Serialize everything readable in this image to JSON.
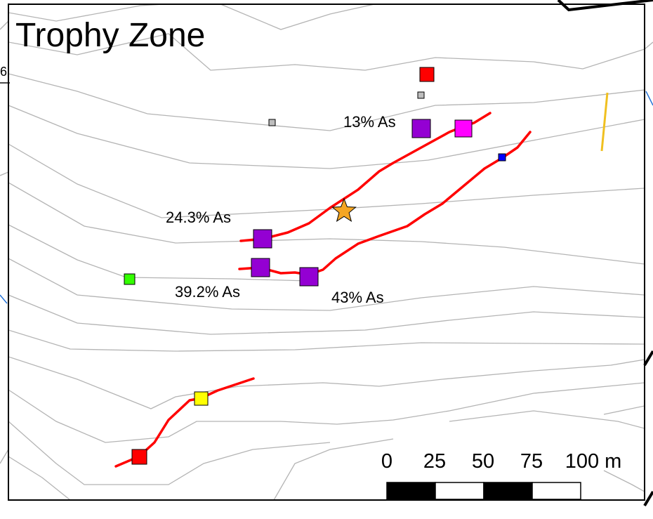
{
  "map": {
    "title": "Trophy Zone",
    "outside_label_fragment": "6",
    "colors": {
      "contour": "#b4b4b4",
      "vein": "#ff0000",
      "frame": "#000000",
      "stream": "#1f6fd6",
      "sample_purple": "#9400d3",
      "sample_red": "#ff0000",
      "sample_magenta": "#ff00ff",
      "sample_green": "#33ff00",
      "sample_yellow": "#ffff00",
      "sample_blue": "#0000ff",
      "sample_gray": "#bdbdbd",
      "star": "#f5a623",
      "yellow_line": "#f0c020"
    },
    "assay_labels": {
      "a": "13% As",
      "b": "24.3% As",
      "c": "39.2% As",
      "d": "43% As"
    },
    "scale_bar": {
      "ticks": [
        "0",
        "25",
        "50",
        "75",
        "100 m"
      ],
      "unit": "m"
    }
  }
}
